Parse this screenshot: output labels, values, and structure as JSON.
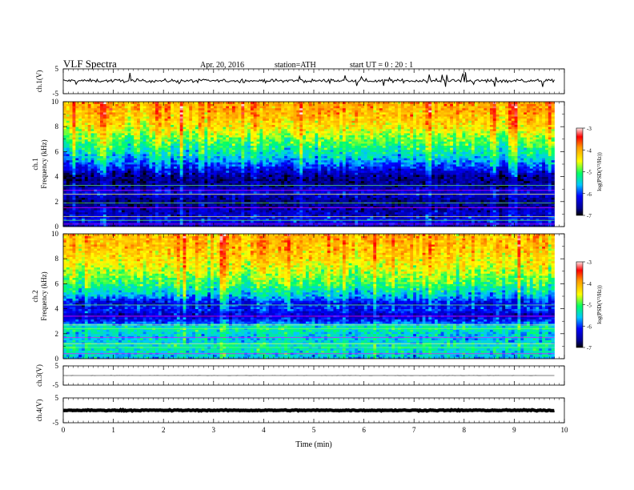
{
  "header": {
    "title": "VLF  Spectra",
    "date": "Apr. 20, 2016",
    "station": "station=ATH",
    "start": "start  UT  =   0  : 20 : 1"
  },
  "chart_data": [
    {
      "type": "line",
      "panel": "ch1-waveform",
      "ylabel": "ch.1(V)",
      "ylim": [
        -5,
        5
      ],
      "yticks": [
        "5",
        "-5"
      ],
      "baseline": 0.2,
      "noise_amplitude": 0.8,
      "xlim": [
        0,
        9.8
      ]
    },
    {
      "type": "heatmap",
      "panel": "ch1-spectrogram",
      "ylabel_top": "ch.1",
      "ylabel": "Frequency  (kHz)",
      "ylim": [
        0,
        10
      ],
      "yticks": [
        "0",
        "2",
        "4",
        "6",
        "8",
        "10"
      ],
      "xlim": [
        0,
        9.8
      ],
      "colorbar": {
        "label": "log(PSD(V²/Hz))",
        "range": [
          -7,
          -3
        ],
        "ticks": [
          "-3",
          "-4",
          "-5",
          "-6",
          "-7"
        ]
      },
      "psd_profile": {
        "freq_khz": [
          0,
          0.5,
          1,
          2,
          2.8,
          3.3,
          4,
          4.5,
          5,
          5.8,
          7,
          8,
          9,
          10
        ],
        "log_psd": [
          -6.5,
          -6.2,
          -6.4,
          -6.7,
          -6.3,
          -6.6,
          -6.7,
          -6.3,
          -5.9,
          -5.4,
          -4.9,
          -4.4,
          -4.1,
          -4.0
        ]
      },
      "lines_khz": [
        0.2,
        0.5,
        0.8,
        1.5,
        1.9,
        2.6,
        2.9,
        3.3
      ]
    },
    {
      "type": "heatmap",
      "panel": "ch2-spectrogram",
      "ylabel_top": "ch.2",
      "ylabel": "Frequency  (kHz)",
      "ylim": [
        0,
        10
      ],
      "yticks": [
        "0",
        "2",
        "4",
        "6",
        "8",
        "10"
      ],
      "xlim": [
        0,
        9.8
      ],
      "colorbar": {
        "label": "log(PSD(V²/Hz))",
        "range": [
          -7,
          -3
        ],
        "ticks": [
          "-3",
          "-4",
          "-5",
          "-6",
          "-7"
        ]
      },
      "psd_profile": {
        "freq_khz": [
          0,
          0.5,
          1,
          1.5,
          2,
          2.5,
          3,
          3.5,
          4,
          4.5,
          5,
          6,
          7,
          8,
          9,
          10
        ],
        "log_psd": [
          -5.6,
          -5.4,
          -5.3,
          -5.5,
          -5.5,
          -5.2,
          -6.0,
          -6.4,
          -6.0,
          -6.2,
          -5.6,
          -5.0,
          -4.6,
          -4.3,
          -4.1,
          -4.0
        ]
      },
      "lines_khz": [
        0.4,
        0.9,
        1.2,
        1.7,
        2.4,
        2.7,
        3.4,
        4.3
      ]
    },
    {
      "type": "line",
      "panel": "ch3-waveform",
      "ylabel": "ch.3(V)",
      "ylim": [
        -5,
        5
      ],
      "yticks": [
        "5",
        "-5"
      ],
      "baseline": 0.0,
      "noise_amplitude": 0.05,
      "xlim": [
        0,
        9.8
      ]
    },
    {
      "type": "line",
      "panel": "ch4-waveform",
      "ylabel": "ch.4(V)",
      "ylim": [
        -5,
        5
      ],
      "yticks": [
        "5",
        "-5"
      ],
      "baseline": 0.0,
      "noise_amplitude": 0.25,
      "xlim": [
        0,
        9.8
      ]
    }
  ],
  "xaxis": {
    "label": "Time  (min)",
    "range": [
      0,
      10
    ],
    "ticks": [
      "0",
      "1",
      "2",
      "3",
      "4",
      "5",
      "6",
      "7",
      "8",
      "9",
      "10"
    ]
  }
}
